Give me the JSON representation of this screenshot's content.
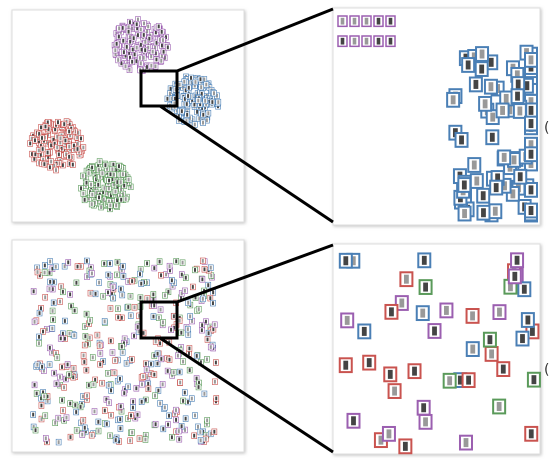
{
  "side_labels": [
    "(",
    "("
  ]
}
